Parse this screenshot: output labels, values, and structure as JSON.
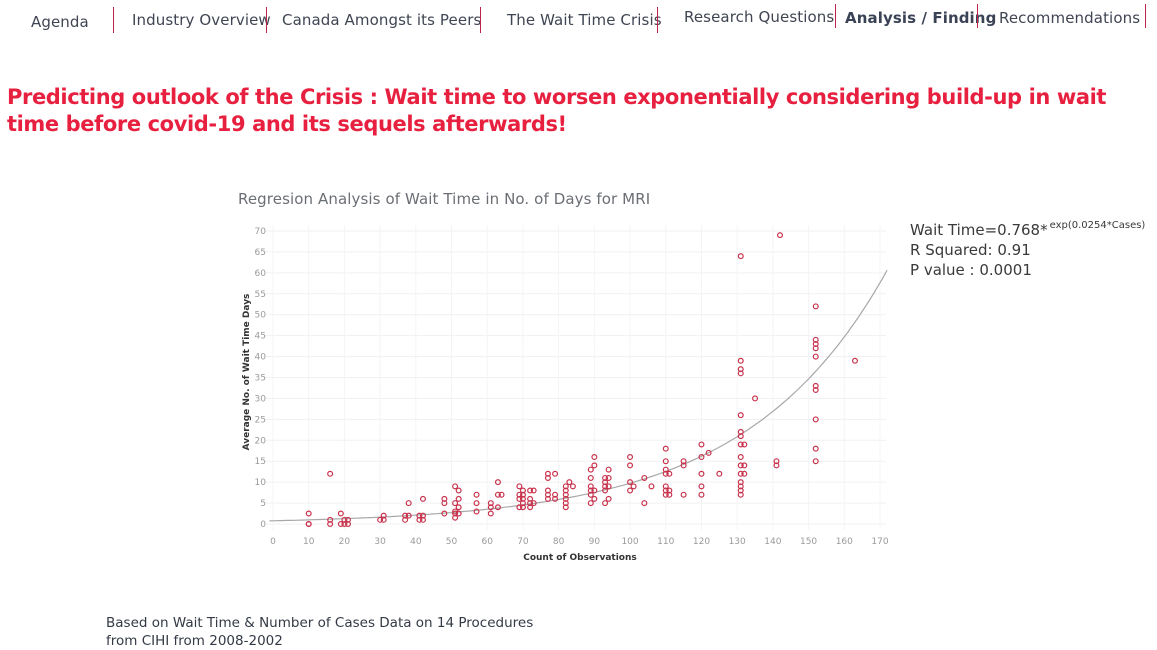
{
  "nav": {
    "items": [
      {
        "label": "Agenda",
        "active": false
      },
      {
        "label": "Industry Overview",
        "active": false
      },
      {
        "label": "Canada Amongst its Peers",
        "active": false
      },
      {
        "label": "The Wait Time Crisis",
        "active": false
      },
      {
        "label": "Research Questions",
        "active": false
      },
      {
        "label": "Analysis / Finding",
        "active": true
      },
      {
        "label": "Recommendations",
        "active": false
      }
    ]
  },
  "headline": "Predicting outlook of the Crisis : Wait time to worsen exponentially considering build-up in wait time before covid-19 and its sequels afterwards!",
  "annotation": {
    "equation": "Wait Time=0.768*",
    "equation_exp": "exp(0.0254*Cases)",
    "r_squared": "R Squared: 0.91",
    "p_value": "P value : 0.0001"
  },
  "footnote": {
    "line1": "Based on Wait Time & Number of Cases Data on 14 Procedures",
    "line2": "from CIHI from 2008-2002"
  },
  "colors": {
    "accent": "#e8203f",
    "points": "#c8324c",
    "trend": "#a8a8a8"
  },
  "chart_data": {
    "type": "scatter",
    "title": "Regresion Analysis of Wait Time in No. of Days for MRI",
    "xlabel": "Count of Observations",
    "ylabel": "Average No. of Wait Time Days",
    "xlim": [
      0,
      170
    ],
    "ylim": [
      0,
      70
    ],
    "xticks": [
      0,
      10,
      20,
      30,
      40,
      50,
      60,
      70,
      80,
      90,
      100,
      110,
      120,
      130,
      140,
      150,
      160,
      170
    ],
    "yticks": [
      0,
      5,
      10,
      15,
      20,
      25,
      30,
      35,
      40,
      45,
      50,
      55,
      60,
      65,
      70
    ],
    "grid": true,
    "trendline": {
      "type": "exponential",
      "a": 0.768,
      "b": 0.0254
    },
    "points": [
      [
        10,
        0
      ],
      [
        10,
        0
      ],
      [
        10,
        2.5
      ],
      [
        16,
        0
      ],
      [
        16,
        1
      ],
      [
        16,
        12
      ],
      [
        19,
        0
      ],
      [
        19,
        2.5
      ],
      [
        20,
        0
      ],
      [
        20,
        1
      ],
      [
        21,
        0
      ],
      [
        21,
        1
      ],
      [
        30,
        1
      ],
      [
        31,
        1
      ],
      [
        31,
        2
      ],
      [
        37,
        1
      ],
      [
        37,
        2
      ],
      [
        38,
        2
      ],
      [
        38,
        5
      ],
      [
        41,
        1
      ],
      [
        41,
        2
      ],
      [
        42,
        1
      ],
      [
        42,
        2
      ],
      [
        42,
        6
      ],
      [
        48,
        2.5
      ],
      [
        48,
        5
      ],
      [
        48,
        6
      ],
      [
        51,
        1.5
      ],
      [
        51,
        2.5
      ],
      [
        51,
        3
      ],
      [
        51,
        5
      ],
      [
        51,
        9
      ],
      [
        52,
        2.5
      ],
      [
        52,
        4
      ],
      [
        52,
        6
      ],
      [
        52,
        8
      ],
      [
        57,
        3
      ],
      [
        57,
        5
      ],
      [
        57,
        7
      ],
      [
        61,
        2.5
      ],
      [
        61,
        4
      ],
      [
        61,
        5
      ],
      [
        63,
        4
      ],
      [
        63,
        7
      ],
      [
        63,
        10
      ],
      [
        64,
        7
      ],
      [
        69,
        4
      ],
      [
        69,
        6
      ],
      [
        69,
        7
      ],
      [
        69,
        9
      ],
      [
        70,
        4
      ],
      [
        70,
        5
      ],
      [
        70,
        6
      ],
      [
        70,
        7
      ],
      [
        70,
        8
      ],
      [
        72,
        4
      ],
      [
        72,
        5
      ],
      [
        72,
        6
      ],
      [
        72,
        8
      ],
      [
        73,
        5
      ],
      [
        73,
        8
      ],
      [
        77,
        6
      ],
      [
        77,
        7
      ],
      [
        77,
        8
      ],
      [
        77,
        11
      ],
      [
        77,
        12
      ],
      [
        79,
        6
      ],
      [
        79,
        7
      ],
      [
        79,
        12
      ],
      [
        82,
        4
      ],
      [
        82,
        5
      ],
      [
        82,
        6
      ],
      [
        82,
        7
      ],
      [
        82,
        8
      ],
      [
        82,
        9
      ],
      [
        83,
        10
      ],
      [
        84,
        9
      ],
      [
        89,
        5
      ],
      [
        89,
        7
      ],
      [
        89,
        8
      ],
      [
        89,
        9
      ],
      [
        89,
        11
      ],
      [
        89,
        13
      ],
      [
        90,
        6
      ],
      [
        90,
        8
      ],
      [
        90,
        14
      ],
      [
        90,
        16
      ],
      [
        93,
        5
      ],
      [
        93,
        8
      ],
      [
        93,
        9
      ],
      [
        93,
        10
      ],
      [
        93,
        11
      ],
      [
        94,
        6
      ],
      [
        94,
        9
      ],
      [
        94,
        11
      ],
      [
        94,
        13
      ],
      [
        100,
        8
      ],
      [
        100,
        10
      ],
      [
        100,
        14
      ],
      [
        100,
        16
      ],
      [
        101,
        9
      ],
      [
        104,
        5
      ],
      [
        104,
        11
      ],
      [
        106,
        9
      ],
      [
        110,
        7
      ],
      [
        110,
        8
      ],
      [
        110,
        9
      ],
      [
        110,
        12
      ],
      [
        110,
        13
      ],
      [
        110,
        15
      ],
      [
        110,
        18
      ],
      [
        111,
        7
      ],
      [
        111,
        8
      ],
      [
        111,
        12
      ],
      [
        115,
        7
      ],
      [
        115,
        14
      ],
      [
        115,
        15
      ],
      [
        120,
        7
      ],
      [
        120,
        9
      ],
      [
        120,
        12
      ],
      [
        120,
        16
      ],
      [
        120,
        19
      ],
      [
        122,
        17
      ],
      [
        125,
        12
      ],
      [
        131,
        7
      ],
      [
        131,
        8
      ],
      [
        131,
        9
      ],
      [
        131,
        10
      ],
      [
        131,
        12
      ],
      [
        131,
        14
      ],
      [
        131,
        16
      ],
      [
        131,
        19
      ],
      [
        131,
        21
      ],
      [
        131,
        22
      ],
      [
        131,
        26
      ],
      [
        131,
        36
      ],
      [
        131,
        37
      ],
      [
        131,
        39
      ],
      [
        131,
        64
      ],
      [
        132,
        12
      ],
      [
        132,
        14
      ],
      [
        132,
        19
      ],
      [
        135,
        30
      ],
      [
        141,
        14
      ],
      [
        141,
        15
      ],
      [
        142,
        69
      ],
      [
        152,
        15
      ],
      [
        152,
        18
      ],
      [
        152,
        25
      ],
      [
        152,
        32
      ],
      [
        152,
        33
      ],
      [
        152,
        40
      ],
      [
        152,
        42
      ],
      [
        152,
        43
      ],
      [
        152,
        44
      ],
      [
        152,
        52
      ],
      [
        163,
        39
      ]
    ]
  }
}
